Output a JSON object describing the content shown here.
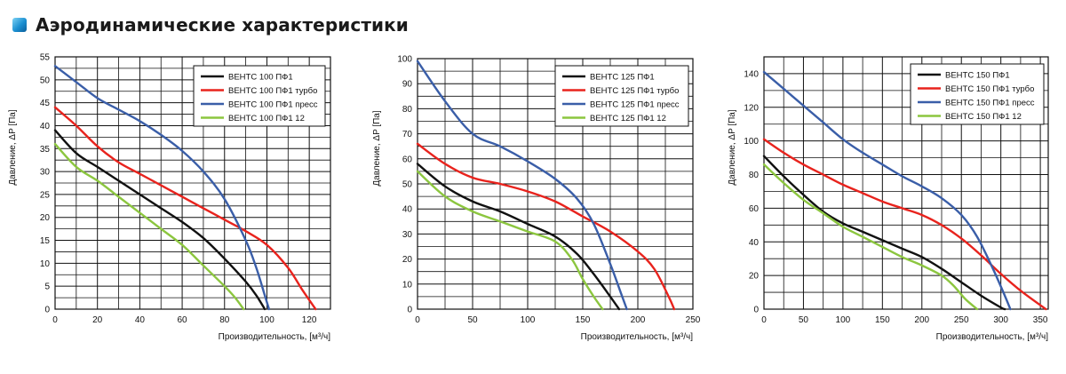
{
  "header": {
    "title": "Аэродинамические характеристики"
  },
  "colors": {
    "black": "#111111",
    "red": "#e8231d",
    "blue": "#3a5ea8",
    "green": "#8cc63f",
    "accent": "#1a8fd1"
  },
  "chart_data": [
    {
      "type": "line",
      "xlabel": "Производительность, [м³/ч]",
      "ylabel": "Давление, ΔP [Па]",
      "xlim": [
        0,
        130
      ],
      "ylim": [
        0,
        55
      ],
      "xticks": [
        0,
        20,
        40,
        60,
        80,
        100,
        120
      ],
      "yticks": [
        0,
        5,
        10,
        15,
        20,
        25,
        30,
        35,
        40,
        45,
        50,
        55
      ],
      "legend_position": "top-right",
      "series": [
        {
          "name": "ВЕНТС 100 ПФ1",
          "color": "#111111",
          "points": [
            [
              0,
              39
            ],
            [
              10,
              34
            ],
            [
              20,
              31
            ],
            [
              30,
              28
            ],
            [
              40,
              25
            ],
            [
              50,
              22
            ],
            [
              60,
              19
            ],
            [
              70,
              15.5
            ],
            [
              80,
              11
            ],
            [
              90,
              6
            ],
            [
              95,
              3
            ],
            [
              99,
              0
            ]
          ]
        },
        {
          "name": "ВЕНТС 100 ПФ1 турбо",
          "color": "#e8231d",
          "points": [
            [
              0,
              44
            ],
            [
              10,
              40
            ],
            [
              20,
              35.5
            ],
            [
              30,
              32
            ],
            [
              40,
              29.5
            ],
            [
              50,
              27
            ],
            [
              60,
              24.5
            ],
            [
              70,
              22
            ],
            [
              80,
              19.5
            ],
            [
              90,
              17
            ],
            [
              100,
              14
            ],
            [
              110,
              9
            ],
            [
              117,
              4
            ],
            [
              123,
              0
            ]
          ]
        },
        {
          "name": "ВЕНТС 100 ПФ1 пресс",
          "color": "#3a5ea8",
          "points": [
            [
              0,
              53
            ],
            [
              10,
              49.5
            ],
            [
              20,
              46
            ],
            [
              30,
              43.5
            ],
            [
              40,
              41
            ],
            [
              50,
              38
            ],
            [
              60,
              34.5
            ],
            [
              70,
              30
            ],
            [
              80,
              24
            ],
            [
              90,
              15
            ],
            [
              95,
              9
            ],
            [
              99,
              3
            ],
            [
              101,
              0
            ]
          ]
        },
        {
          "name": "ВЕНТС 100 ПФ1 12",
          "color": "#8cc63f",
          "points": [
            [
              0,
              36
            ],
            [
              10,
              31
            ],
            [
              20,
              28
            ],
            [
              30,
              24.5
            ],
            [
              40,
              21
            ],
            [
              50,
              17.5
            ],
            [
              60,
              14
            ],
            [
              70,
              9.5
            ],
            [
              80,
              5
            ],
            [
              85,
              2.5
            ],
            [
              89,
              0
            ]
          ]
        }
      ]
    },
    {
      "type": "line",
      "xlabel": "Производительность, [м³/ч]",
      "ylabel": "Давление, ΔP [Па]",
      "xlim": [
        0,
        250
      ],
      "ylim": [
        0,
        100
      ],
      "xticks": [
        0,
        50,
        100,
        150,
        200,
        250
      ],
      "yticks": [
        0,
        10,
        20,
        30,
        40,
        50,
        60,
        70,
        80,
        90,
        100
      ],
      "legend_position": "top-right",
      "series": [
        {
          "name": "ВЕНТС 125 ПФ1",
          "color": "#111111",
          "points": [
            [
              0,
              58
            ],
            [
              25,
              49
            ],
            [
              50,
              43
            ],
            [
              75,
              39
            ],
            [
              100,
              34
            ],
            [
              125,
              29
            ],
            [
              145,
              22
            ],
            [
              160,
              14
            ],
            [
              175,
              5
            ],
            [
              183,
              0
            ]
          ]
        },
        {
          "name": "ВЕНТС 125 ПФ1 турбо",
          "color": "#e8231d",
          "points": [
            [
              0,
              66
            ],
            [
              25,
              58
            ],
            [
              50,
              52.5
            ],
            [
              75,
              50
            ],
            [
              100,
              47
            ],
            [
              125,
              43
            ],
            [
              150,
              37
            ],
            [
              175,
              31
            ],
            [
              200,
              23
            ],
            [
              215,
              16
            ],
            [
              228,
              5
            ],
            [
              233,
              0
            ]
          ]
        },
        {
          "name": "ВЕНТС 125 ПФ1 пресс",
          "color": "#3a5ea8",
          "points": [
            [
              0,
              99
            ],
            [
              25,
              83
            ],
            [
              50,
              70
            ],
            [
              75,
              65
            ],
            [
              100,
              59
            ],
            [
              125,
              52
            ],
            [
              145,
              44
            ],
            [
              160,
              34
            ],
            [
              175,
              18
            ],
            [
              185,
              6
            ],
            [
              190,
              0
            ]
          ]
        },
        {
          "name": "ВЕНТС 125 ПФ1 12",
          "color": "#8cc63f",
          "points": [
            [
              0,
              55
            ],
            [
              25,
              45
            ],
            [
              50,
              39
            ],
            [
              75,
              35
            ],
            [
              100,
              31
            ],
            [
              125,
              27
            ],
            [
              140,
              20
            ],
            [
              150,
              12
            ],
            [
              160,
              5
            ],
            [
              168,
              0
            ]
          ]
        }
      ]
    },
    {
      "type": "line",
      "xlabel": "Производительность, [м³/ч]",
      "ylabel": "Давление, ΔP [Па]",
      "xlim": [
        0,
        360
      ],
      "ylim": [
        0,
        150
      ],
      "xticks": [
        0,
        50,
        100,
        150,
        200,
        250,
        300,
        350
      ],
      "yticks": [
        0,
        20,
        40,
        60,
        80,
        100,
        120,
        140
      ],
      "legend_position": "top-right",
      "series": [
        {
          "name": "ВЕНТС 150 ПФ1",
          "color": "#111111",
          "points": [
            [
              0,
              91
            ],
            [
              25,
              79
            ],
            [
              50,
              68
            ],
            [
              75,
              58
            ],
            [
              100,
              51
            ],
            [
              125,
              46
            ],
            [
              150,
              41
            ],
            [
              175,
              36
            ],
            [
              200,
              31
            ],
            [
              225,
              24
            ],
            [
              250,
              16
            ],
            [
              275,
              8
            ],
            [
              300,
              1
            ],
            [
              305,
              0
            ]
          ]
        },
        {
          "name": "ВЕНТС 150 ПФ1 турбо",
          "color": "#e8231d",
          "points": [
            [
              0,
              101
            ],
            [
              25,
              93
            ],
            [
              50,
              86
            ],
            [
              75,
              80
            ],
            [
              100,
              74
            ],
            [
              125,
              69
            ],
            [
              150,
              64
            ],
            [
              175,
              60
            ],
            [
              200,
              56
            ],
            [
              225,
              50
            ],
            [
              250,
              42
            ],
            [
              275,
              32
            ],
            [
              300,
              21
            ],
            [
              325,
              11
            ],
            [
              357,
              0
            ]
          ]
        },
        {
          "name": "ВЕНТС 150 ПФ1 пресс",
          "color": "#3a5ea8",
          "points": [
            [
              0,
              141
            ],
            [
              25,
              131
            ],
            [
              50,
              121
            ],
            [
              75,
              111
            ],
            [
              100,
              101
            ],
            [
              125,
              93
            ],
            [
              150,
              86
            ],
            [
              175,
              79
            ],
            [
              200,
              73
            ],
            [
              225,
              66
            ],
            [
              250,
              56
            ],
            [
              270,
              43
            ],
            [
              290,
              24
            ],
            [
              305,
              8
            ],
            [
              312,
              0
            ]
          ]
        },
        {
          "name": "ВЕНТС 150 ПФ1 12",
          "color": "#8cc63f",
          "points": [
            [
              0,
              86
            ],
            [
              25,
              75
            ],
            [
              50,
              65
            ],
            [
              75,
              57
            ],
            [
              100,
              49
            ],
            [
              125,
              43
            ],
            [
              150,
              37
            ],
            [
              175,
              31
            ],
            [
              200,
              26
            ],
            [
              225,
              20
            ],
            [
              240,
              14
            ],
            [
              255,
              6
            ],
            [
              270,
              0
            ]
          ]
        }
      ]
    }
  ]
}
